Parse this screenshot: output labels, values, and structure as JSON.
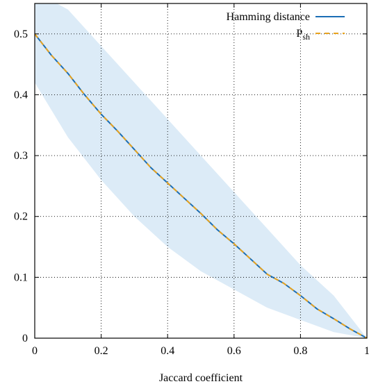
{
  "chart_data": {
    "type": "line",
    "xlabel": "Jaccard coefficient",
    "ylabel": "",
    "xlim": [
      0,
      1
    ],
    "ylim": [
      0,
      0.55
    ],
    "xticks": [
      {
        "value": 0,
        "label": "0"
      },
      {
        "value": 0.2,
        "label": "0.2"
      },
      {
        "value": 0.4,
        "label": "0.4"
      },
      {
        "value": 0.6,
        "label": "0.6"
      },
      {
        "value": 0.8,
        "label": "0.8"
      },
      {
        "value": 1,
        "label": "1"
      }
    ],
    "yticks": [
      {
        "value": 0,
        "label": "0"
      },
      {
        "value": 0.1,
        "label": "0.1"
      },
      {
        "value": 0.2,
        "label": "0.2"
      },
      {
        "value": 0.3,
        "label": "0.3"
      },
      {
        "value": 0.4,
        "label": "0.4"
      },
      {
        "value": 0.5,
        "label": "0.5"
      }
    ],
    "grid": true,
    "legend_position": "top-right",
    "legend": {
      "hamming_label": "Hamming distance",
      "psh_main": "P",
      "psh_sub": "sh"
    },
    "series": [
      {
        "name": "Hamming distance",
        "color": "#1a6db5",
        "style": "solid",
        "x": [
          0,
          0.05,
          0.1,
          0.15,
          0.2,
          0.25,
          0.3,
          0.35,
          0.4,
          0.45,
          0.5,
          0.55,
          0.6,
          0.65,
          0.7,
          0.75,
          0.8,
          0.85,
          0.9,
          0.95,
          1
        ],
        "y": [
          0.5,
          0.465,
          0.435,
          0.4,
          0.368,
          0.34,
          0.31,
          0.28,
          0.255,
          0.23,
          0.205,
          0.178,
          0.155,
          0.13,
          0.105,
          0.09,
          0.07,
          0.048,
          0.032,
          0.015,
          0
        ]
      },
      {
        "name": "P_sh",
        "color": "#e8a31e",
        "style": "dashed",
        "x": [
          0,
          0.05,
          0.1,
          0.15,
          0.2,
          0.25,
          0.3,
          0.35,
          0.4,
          0.45,
          0.5,
          0.55,
          0.6,
          0.65,
          0.7,
          0.75,
          0.8,
          0.85,
          0.9,
          0.95,
          1
        ],
        "y": [
          0.5,
          0.465,
          0.435,
          0.4,
          0.368,
          0.34,
          0.31,
          0.28,
          0.255,
          0.23,
          0.205,
          0.178,
          0.155,
          0.13,
          0.105,
          0.09,
          0.07,
          0.048,
          0.032,
          0.015,
          0
        ]
      }
    ],
    "band": {
      "color": "#dcebf7",
      "x": [
        0,
        0.1,
        0.2,
        0.3,
        0.4,
        0.5,
        0.6,
        0.7,
        0.8,
        0.9,
        1
      ],
      "upper": [
        0.57,
        0.54,
        0.48,
        0.42,
        0.36,
        0.3,
        0.24,
        0.18,
        0.12,
        0.07,
        0
      ],
      "lower": [
        0.42,
        0.33,
        0.26,
        0.2,
        0.15,
        0.11,
        0.08,
        0.05,
        0.03,
        0.01,
        0
      ]
    }
  }
}
